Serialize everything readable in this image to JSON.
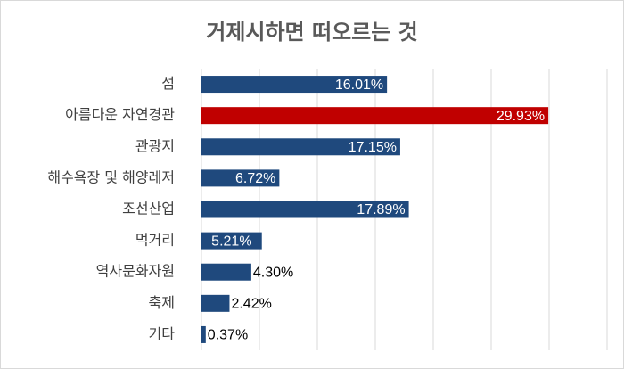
{
  "chart_data": {
    "type": "bar",
    "orientation": "horizontal",
    "title": "거제시하면 떠오르는 것",
    "categories": [
      "섬",
      "아름다운 자연경관",
      "관광지",
      "해수욕장 및 해양레저",
      "조선산업",
      "먹거리",
      "역사문화자원",
      "축제",
      "기타"
    ],
    "values": [
      16.01,
      29.93,
      17.15,
      6.72,
      17.89,
      5.21,
      4.3,
      2.42,
      0.37
    ],
    "value_labels": [
      "16.01%",
      "29.93%",
      "17.15%",
      "6.72%",
      "17.89%",
      "5.21%",
      "4.30%",
      "2.42%",
      "0.37%"
    ],
    "highlight_index": 1,
    "xlim": [
      0,
      35
    ],
    "grid": true,
    "colors": {
      "bar": "#1f497d",
      "highlight": "#c00000",
      "grid": "#d9d9d9"
    }
  }
}
